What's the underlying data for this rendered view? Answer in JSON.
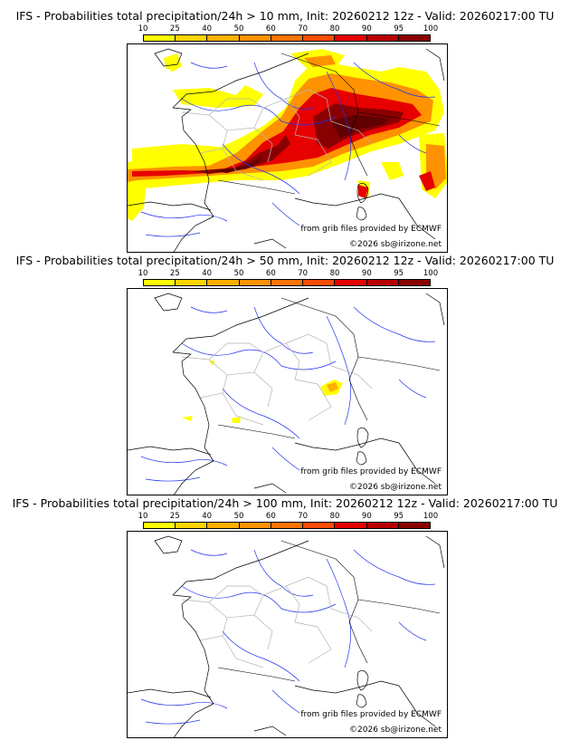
{
  "legend": {
    "ticks": [
      "10",
      "25",
      "40",
      "50",
      "60",
      "70",
      "80",
      "90",
      "95",
      "100"
    ],
    "colors": [
      "#ffff00",
      "#ffd400",
      "#ffae00",
      "#ff9200",
      "#ff7400",
      "#ff4c00",
      "#e60000",
      "#b80000",
      "#8a0000",
      "#600000"
    ]
  },
  "line_colors": {
    "coast": "#000000",
    "border": "#000000",
    "region": "#b4b4b4",
    "river": "#2233ee"
  },
  "panels": [
    {
      "title": "IFS - Probabilities total precipitation/24h > 10 mm, Init: 20260212 12z - Valid: 20260217:00 TU",
      "credit_source": "from grib files provided by ECMWF",
      "credit_copyright": "©2026 sb@irizone.net"
    },
    {
      "title": "IFS - Probabilities total precipitation/24h > 50 mm, Init: 20260212 12z - Valid: 20260217:00 TU",
      "credit_source": "from grib files provided by ECMWF",
      "credit_copyright": "©2026 sb@irizone.net"
    },
    {
      "title": "IFS - Probabilities total precipitation/24h > 100 mm, Init: 20260212 12z - Valid: 20260217:00 TU",
      "credit_source": "from grib files provided by ECMWF",
      "credit_copyright": "©2026 sb@irizone.net"
    }
  ]
}
